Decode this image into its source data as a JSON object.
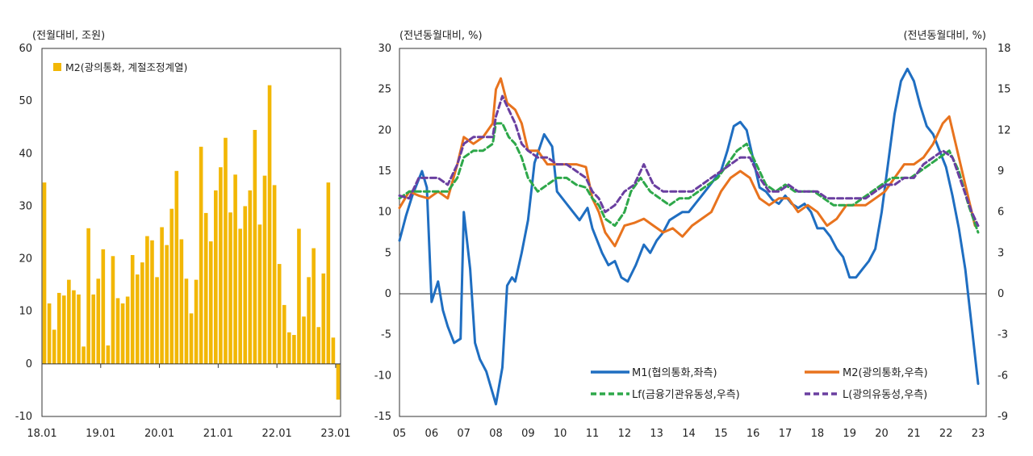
{
  "chart_data": [
    {
      "type": "bar",
      "yunit": "(전월대비, 조원)",
      "ylim": [
        -10,
        60
      ],
      "yticks": [
        "60",
        "50",
        "40",
        "30",
        "20",
        "10",
        "0",
        "-10"
      ],
      "xticks": [
        "18.01",
        "19.01",
        "20.01",
        "21.01",
        "22.01",
        "23.01"
      ],
      "legend": "M2(광의통화, 계절조정계열)",
      "legend_position": "top-left",
      "color": "#F2B705",
      "values": [
        34.5,
        11.5,
        6.5,
        13.5,
        13.0,
        16.0,
        14.0,
        13.2,
        3.3,
        25.8,
        13.2,
        16.2,
        21.8,
        3.5,
        20.5,
        12.5,
        11.5,
        12.8,
        20.7,
        17.0,
        19.3,
        24.3,
        23.5,
        16.5,
        26.0,
        22.6,
        29.5,
        36.7,
        23.7,
        16.2,
        9.6,
        16.0,
        41.3,
        28.7,
        23.3,
        33.0,
        37.4,
        43.0,
        28.8,
        36.0,
        25.7,
        30.0,
        33.0,
        44.5,
        26.5,
        35.8,
        53.0,
        34.0,
        19.0,
        11.2,
        6.0,
        5.5,
        25.7,
        9.0,
        16.5,
        22.0,
        7.0,
        17.2,
        34.5,
        5.0,
        -6.8
      ]
    },
    {
      "type": "line",
      "yunit_left": "(전년동월대비, %)",
      "yunit_right": "(전년동월대비, %)",
      "ylim_left": [
        -15,
        30
      ],
      "ylim_right": [
        -9,
        18
      ],
      "yticks_left": [
        "30",
        "25",
        "20",
        "15",
        "10",
        "5",
        "0",
        "-5",
        "-10",
        "-15"
      ],
      "yticks_right": [
        "18",
        "15",
        "12",
        "9",
        "6",
        "3",
        "0",
        "-3",
        "-6",
        "-9"
      ],
      "xticks": [
        "05",
        "06",
        "07",
        "08",
        "09",
        "10",
        "11",
        "12",
        "13",
        "14",
        "15",
        "16",
        "17",
        "18",
        "19",
        "20",
        "21",
        "22",
        "23"
      ],
      "series": [
        {
          "name": "M1(협의통화,좌측)",
          "axis": "left",
          "style": "solid",
          "color": "#1F6EC1",
          "x": [
            2005.0,
            2005.2,
            2005.4,
            2005.7,
            2005.85,
            2006.0,
            2006.2,
            2006.35,
            2006.5,
            2006.7,
            2006.9,
            2007.0,
            2007.2,
            2007.35,
            2007.5,
            2007.7,
            2007.85,
            2008.0,
            2008.2,
            2008.35,
            2008.5,
            2008.6,
            2008.8,
            2009.0,
            2009.2,
            2009.5,
            2009.75,
            2009.9,
            2010.2,
            2010.4,
            2010.6,
            2010.85,
            2011.0,
            2011.3,
            2011.5,
            2011.7,
            2011.9,
            2012.1,
            2012.35,
            2012.6,
            2012.8,
            2013.0,
            2013.2,
            2013.4,
            2013.6,
            2013.8,
            2014.0,
            2014.2,
            2014.4,
            2014.6,
            2014.8,
            2015.0,
            2015.2,
            2015.4,
            2015.6,
            2015.8,
            2016.0,
            2016.2,
            2016.4,
            2016.6,
            2016.8,
            2017.0,
            2017.2,
            2017.4,
            2017.6,
            2017.8,
            2018.0,
            2018.2,
            2018.4,
            2018.6,
            2018.8,
            2019.0,
            2019.2,
            2019.4,
            2019.6,
            2019.8,
            2020.0,
            2020.2,
            2020.4,
            2020.6,
            2020.8,
            2021.0,
            2021.2,
            2021.4,
            2021.6,
            2021.8,
            2022.0,
            2022.2,
            2022.4,
            2022.6,
            2022.8,
            2023.0
          ],
          "y": [
            6.5,
            9.5,
            12.0,
            15.0,
            13.0,
            -1.0,
            1.5,
            -2.0,
            -4.0,
            -6.0,
            -5.5,
            10.0,
            3.0,
            -6.0,
            -8.0,
            -9.5,
            -11.5,
            -13.5,
            -9.0,
            1.0,
            2.0,
            1.5,
            5.0,
            9.0,
            16.0,
            19.5,
            18.0,
            12.5,
            11.0,
            10.0,
            9.0,
            10.5,
            8.0,
            5.0,
            3.5,
            4.0,
            2.0,
            1.5,
            3.5,
            6.0,
            5.0,
            6.5,
            7.5,
            9.0,
            9.5,
            10.0,
            10.0,
            11.0,
            12.0,
            13.0,
            14.0,
            15.0,
            17.5,
            20.5,
            21.0,
            20.0,
            16.5,
            13.0,
            12.5,
            11.5,
            11.0,
            12.0,
            11.0,
            10.5,
            11.0,
            10.0,
            8.0,
            8.0,
            7.0,
            5.5,
            4.5,
            2.0,
            2.0,
            3.0,
            4.0,
            5.5,
            10.0,
            16.0,
            22.0,
            26.0,
            27.5,
            26.0,
            23.0,
            20.5,
            19.5,
            17.5,
            15.5,
            12.0,
            8.0,
            3.0,
            -4.0,
            -11.0
          ]
        },
        {
          "name": "M2(광의통화,우측)",
          "axis": "right",
          "style": "solid",
          "color": "#E8731E",
          "x": [
            2005.0,
            2005.3,
            2005.6,
            2005.9,
            2006.2,
            2006.5,
            2006.8,
            2007.0,
            2007.3,
            2007.6,
            2007.9,
            2008.0,
            2008.15,
            2008.35,
            2008.6,
            2008.8,
            2009.0,
            2009.3,
            2009.6,
            2009.9,
            2010.2,
            2010.5,
            2010.8,
            2011.0,
            2011.2,
            2011.4,
            2011.7,
            2012.0,
            2012.3,
            2012.6,
            2012.9,
            2013.2,
            2013.5,
            2013.8,
            2014.1,
            2014.4,
            2014.7,
            2015.0,
            2015.3,
            2015.6,
            2015.9,
            2016.2,
            2016.5,
            2016.8,
            2017.1,
            2017.4,
            2017.7,
            2018.0,
            2018.3,
            2018.6,
            2018.9,
            2019.2,
            2019.5,
            2019.8,
            2020.1,
            2020.4,
            2020.7,
            2021.0,
            2021.3,
            2021.6,
            2021.9,
            2022.1,
            2022.3,
            2022.6,
            2022.9
          ],
          "y": [
            6.3,
            7.5,
            7.2,
            7.0,
            7.5,
            7.0,
            9.5,
            11.5,
            11.0,
            11.5,
            12.5,
            15.0,
            15.8,
            14.0,
            13.5,
            12.5,
            10.5,
            10.5,
            9.5,
            9.5,
            9.5,
            9.5,
            9.3,
            7.0,
            6.0,
            4.5,
            3.5,
            5.0,
            5.2,
            5.5,
            5.0,
            4.5,
            4.8,
            4.2,
            5.0,
            5.5,
            6.0,
            7.5,
            8.5,
            9.0,
            8.5,
            7.0,
            6.5,
            7.0,
            7.0,
            6.0,
            6.5,
            6.0,
            5.0,
            5.5,
            6.5,
            6.5,
            6.5,
            7.0,
            7.5,
            8.5,
            9.5,
            9.5,
            10.0,
            11.0,
            12.5,
            13.0,
            11.0,
            8.0,
            5.0
          ]
        },
        {
          "name": "Lf(금융기관유동성,우측)",
          "axis": "right",
          "style": "dashed",
          "color": "#2EA84A",
          "x": [
            2005.0,
            2005.3,
            2005.6,
            2005.9,
            2006.2,
            2006.5,
            2006.8,
            2007.0,
            2007.3,
            2007.6,
            2007.9,
            2008.0,
            2008.2,
            2008.4,
            2008.6,
            2008.8,
            2009.0,
            2009.3,
            2009.6,
            2009.9,
            2010.2,
            2010.5,
            2010.8,
            2011.0,
            2011.2,
            2011.4,
            2011.7,
            2012.0,
            2012.2,
            2012.5,
            2012.8,
            2013.1,
            2013.4,
            2013.7,
            2014.0,
            2014.3,
            2014.6,
            2014.9,
            2015.2,
            2015.5,
            2015.8,
            2016.1,
            2016.4,
            2016.7,
            2017.0,
            2017.3,
            2017.6,
            2017.9,
            2018.2,
            2018.5,
            2018.8,
            2019.1,
            2019.4,
            2019.7,
            2020.0,
            2020.3,
            2020.6,
            2020.9,
            2021.2,
            2021.5,
            2021.8,
            2022.1,
            2022.4,
            2022.7,
            2023.0
          ],
          "y": [
            7.0,
            7.5,
            7.5,
            7.5,
            7.5,
            7.5,
            8.5,
            10.0,
            10.5,
            10.5,
            11.0,
            12.5,
            12.5,
            11.5,
            11.0,
            10.0,
            8.5,
            7.5,
            8.0,
            8.5,
            8.5,
            8.0,
            7.8,
            7.0,
            6.5,
            5.5,
            5.0,
            6.0,
            7.5,
            8.5,
            7.5,
            7.0,
            6.5,
            7.0,
            7.0,
            7.5,
            8.0,
            8.5,
            9.5,
            10.5,
            11.0,
            9.5,
            8.0,
            7.5,
            8.0,
            7.5,
            7.5,
            7.5,
            7.0,
            6.5,
            6.5,
            6.5,
            7.0,
            7.5,
            8.0,
            8.5,
            8.5,
            8.5,
            9.0,
            9.5,
            10.0,
            10.5,
            9.0,
            6.5,
            4.5
          ]
        },
        {
          "name": "L(광의유동성,우측)",
          "axis": "right",
          "style": "dashed",
          "color": "#6A3FA0",
          "x": [
            2005.0,
            2005.3,
            2005.6,
            2005.9,
            2006.2,
            2006.5,
            2006.8,
            2007.0,
            2007.3,
            2007.6,
            2007.9,
            2008.0,
            2008.2,
            2008.4,
            2008.6,
            2008.8,
            2009.0,
            2009.3,
            2009.6,
            2009.9,
            2010.2,
            2010.5,
            2010.8,
            2011.0,
            2011.2,
            2011.4,
            2011.7,
            2012.0,
            2012.3,
            2012.6,
            2012.9,
            2013.2,
            2013.5,
            2013.8,
            2014.1,
            2014.4,
            2014.7,
            2015.0,
            2015.3,
            2015.6,
            2015.9,
            2016.2,
            2016.5,
            2016.8,
            2017.1,
            2017.4,
            2017.7,
            2018.0,
            2018.3,
            2018.6,
            2018.9,
            2019.2,
            2019.5,
            2019.8,
            2020.1,
            2020.4,
            2020.7,
            2021.0,
            2021.3,
            2021.6,
            2021.9,
            2022.2,
            2022.5,
            2022.8,
            2023.0
          ],
          "y": [
            7.2,
            7.0,
            8.5,
            8.5,
            8.5,
            8.0,
            9.5,
            11.0,
            11.5,
            11.5,
            11.5,
            13.0,
            14.5,
            13.5,
            12.5,
            11.0,
            10.5,
            10.0,
            10.0,
            9.5,
            9.5,
            9.0,
            8.5,
            7.5,
            7.0,
            6.0,
            6.5,
            7.5,
            8.0,
            9.5,
            8.0,
            7.5,
            7.5,
            7.5,
            7.5,
            8.0,
            8.5,
            9.0,
            9.5,
            10.0,
            10.0,
            8.5,
            7.5,
            7.5,
            8.0,
            7.5,
            7.5,
            7.5,
            7.0,
            7.0,
            7.0,
            7.0,
            7.0,
            7.5,
            8.0,
            8.0,
            8.5,
            8.5,
            9.5,
            10.0,
            10.5,
            10.0,
            8.0,
            6.0,
            5.0
          ]
        }
      ],
      "legend_position": "bottom-right"
    }
  ]
}
